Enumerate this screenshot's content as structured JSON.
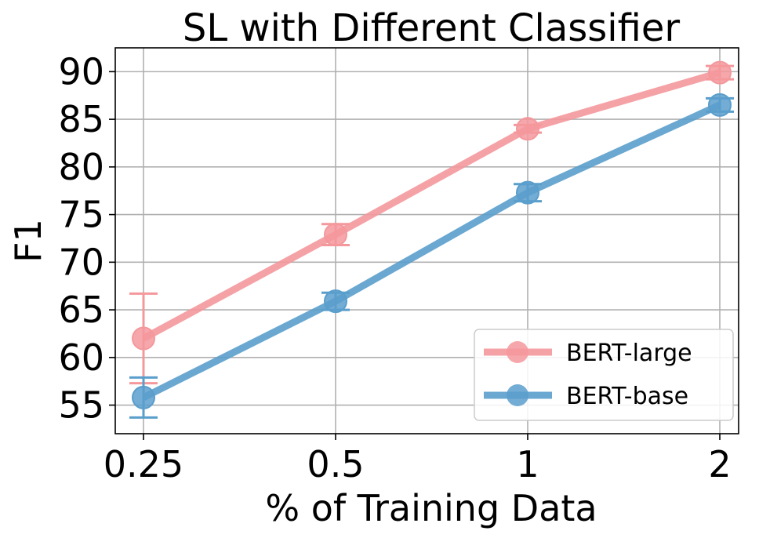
{
  "chart_data": {
    "type": "line",
    "title": "SL with Different Classifier",
    "xlabel": "% of Training Data",
    "ylabel": "F1",
    "categories": [
      "0.25",
      "0.5",
      "1",
      "2"
    ],
    "ylim": [
      52,
      92.5
    ],
    "yticks": [
      55,
      60,
      65,
      70,
      75,
      80,
      85,
      90
    ],
    "grid": true,
    "legend_position": "lower-right",
    "series": [
      {
        "name": "BERT-large",
        "color": "#f4989c",
        "values": [
          62.0,
          72.9,
          84.0,
          89.9
        ],
        "error": [
          4.7,
          1.1,
          0.4,
          0.7
        ]
      },
      {
        "name": "BERT-base",
        "color": "#5a9ecc",
        "values": [
          55.8,
          65.9,
          77.3,
          86.5
        ],
        "error": [
          2.1,
          0.9,
          0.9,
          0.7
        ]
      }
    ]
  }
}
